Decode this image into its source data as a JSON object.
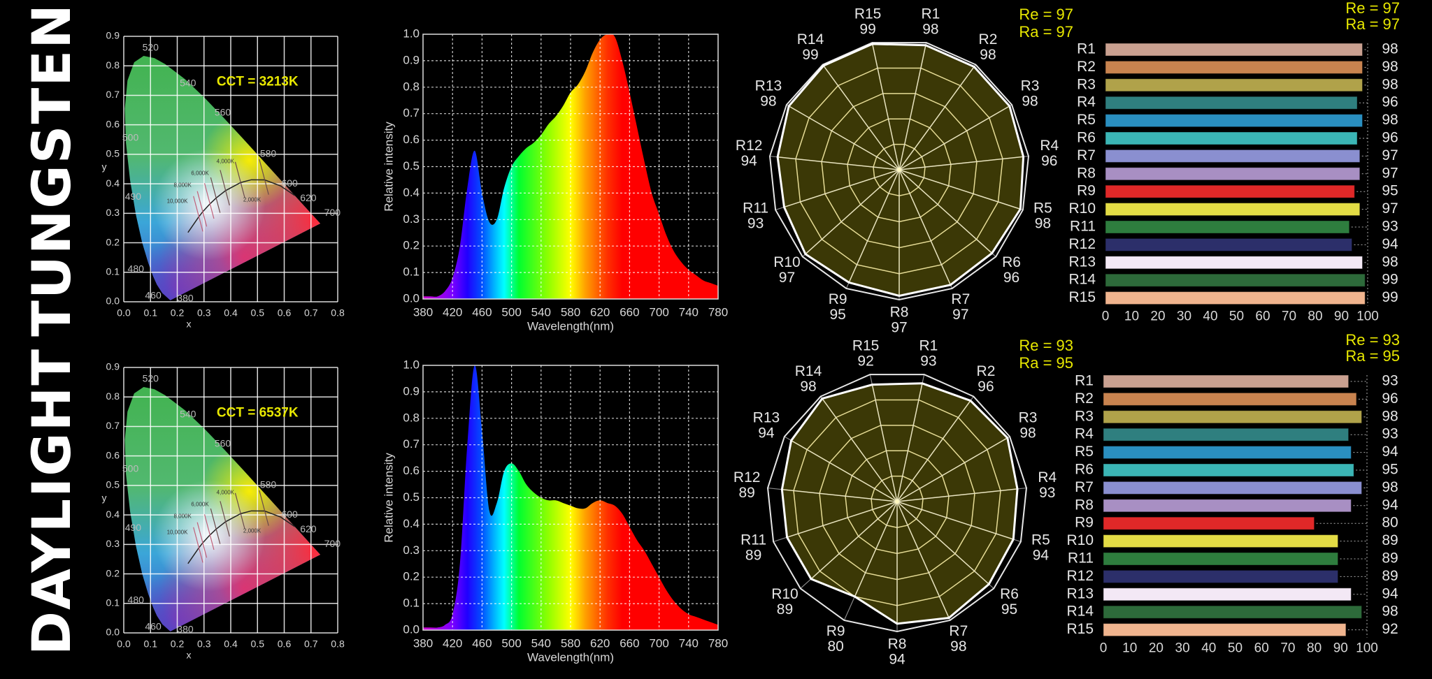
{
  "rows": [
    {
      "label": "TUNGSTEN"
    },
    {
      "label": "DAYLIGHT"
    }
  ],
  "colors": {
    "background": "#000000",
    "annotation": "#e8e800",
    "radar_fill": "#3b3806",
    "radar_grid": "#e6dc96",
    "cri_bar_colors": [
      "#c9a090",
      "#c8834f",
      "#b0a24a",
      "#2f7f7f",
      "#2a8fc0",
      "#3bb5b5",
      "#8a8fd0",
      "#a88fc3",
      "#e02828",
      "#e3dc45",
      "#2e7d3e",
      "#2c2f6a",
      "#f3e8f5",
      "#2d6a3a",
      "#f0b48e"
    ]
  },
  "chart_data": [
    {
      "type": "chromaticity",
      "xlabel": "x",
      "ylabel": "y",
      "xlim": [
        0,
        0.8
      ],
      "ylim": [
        0,
        0.9
      ],
      "xticks": [
        "0.0",
        "0.1",
        "0.2",
        "0.3",
        "0.4",
        "0.5",
        "0.6",
        "0.7",
        "0.8"
      ],
      "yticks": [
        "0.0",
        "0.1",
        "0.2",
        "0.3",
        "0.4",
        "0.5",
        "0.6",
        "0.7",
        "0.8",
        "0.9"
      ],
      "grid": true,
      "annotation": "CCT = 3213K",
      "wavelength_labels": [
        "520",
        "540",
        "560",
        "580",
        "600",
        "620",
        "700",
        "500",
        "490",
        "480",
        "460",
        "380"
      ],
      "isotherm_labels": [
        "10,000K",
        "8,000K",
        "6,000K",
        "4,000K",
        "2,000K"
      ]
    },
    {
      "type": "area",
      "xlabel": "Wavelength(nm)",
      "ylabel": "Relative intensity",
      "xlim": [
        380,
        780
      ],
      "ylim": [
        0,
        1.0
      ],
      "xticks": [
        "380",
        "420",
        "460",
        "500",
        "540",
        "580",
        "620",
        "660",
        "700",
        "740",
        "780"
      ],
      "yticks": [
        "0.0",
        "0.1",
        "0.2",
        "0.3",
        "0.4",
        "0.5",
        "0.6",
        "0.7",
        "0.8",
        "0.9",
        "1.0"
      ],
      "grid": true,
      "x": [
        380,
        390,
        400,
        410,
        420,
        430,
        440,
        450,
        460,
        470,
        480,
        490,
        500,
        510,
        520,
        530,
        540,
        550,
        560,
        570,
        580,
        590,
        600,
        610,
        620,
        630,
        640,
        650,
        660,
        670,
        680,
        690,
        700,
        710,
        720,
        730,
        740,
        750,
        760,
        770,
        780
      ],
      "y": [
        0.01,
        0.01,
        0.01,
        0.03,
        0.08,
        0.2,
        0.42,
        0.56,
        0.4,
        0.29,
        0.3,
        0.42,
        0.5,
        0.54,
        0.57,
        0.59,
        0.62,
        0.66,
        0.69,
        0.73,
        0.78,
        0.81,
        0.86,
        0.93,
        0.98,
        1.0,
        0.99,
        0.9,
        0.78,
        0.65,
        0.52,
        0.4,
        0.32,
        0.24,
        0.18,
        0.14,
        0.11,
        0.09,
        0.07,
        0.06,
        0.05
      ]
    },
    {
      "type": "radar",
      "categories": [
        "R1",
        "R2",
        "R3",
        "R4",
        "R5",
        "R6",
        "R7",
        "R8",
        "R9",
        "R10",
        "R11",
        "R12",
        "R13",
        "R14",
        "R15"
      ],
      "values": [
        98,
        98,
        98,
        96,
        98,
        96,
        97,
        97,
        95,
        97,
        93,
        94,
        98,
        99,
        99
      ],
      "value_labels": [
        "98",
        "98",
        "98",
        "96",
        "98",
        "96",
        "97",
        "97",
        "95",
        "97",
        "93",
        "94",
        "98",
        "99",
        "99"
      ],
      "rlim": [
        0,
        100
      ],
      "annotations": [
        "Re = 97",
        "Ra = 97"
      ]
    },
    {
      "type": "bar",
      "orientation": "horizontal",
      "categories": [
        "R1",
        "R2",
        "R3",
        "R4",
        "R5",
        "R6",
        "R7",
        "R8",
        "R9",
        "R10",
        "R11",
        "R12",
        "R13",
        "R14",
        "R15"
      ],
      "values": [
        98,
        98,
        98,
        96,
        98,
        96,
        97,
        97,
        95,
        97,
        93,
        94,
        98,
        99,
        99
      ],
      "value_labels": [
        "98",
        "98",
        "98",
        "96",
        "98",
        "96",
        "97",
        "97",
        "95",
        "97",
        "93",
        "94",
        "98",
        "99",
        "99"
      ],
      "xlim": [
        0,
        100
      ],
      "xticks": [
        "0",
        "10",
        "20",
        "30",
        "40",
        "50",
        "60",
        "70",
        "80",
        "90",
        "100"
      ],
      "annotations": [
        "Re = 97",
        "Ra = 97"
      ]
    },
    {
      "type": "chromaticity",
      "xlabel": "x",
      "ylabel": "y",
      "xlim": [
        0,
        0.8
      ],
      "ylim": [
        0,
        0.9
      ],
      "xticks": [
        "0.0",
        "0.1",
        "0.2",
        "0.3",
        "0.4",
        "0.5",
        "0.6",
        "0.7",
        "0.8"
      ],
      "yticks": [
        "0.0",
        "0.1",
        "0.2",
        "0.3",
        "0.4",
        "0.5",
        "0.6",
        "0.7",
        "0.8",
        "0.9"
      ],
      "grid": true,
      "annotation": "CCT = 6537K",
      "wavelength_labels": [
        "520",
        "540",
        "560",
        "580",
        "600",
        "620",
        "700",
        "500",
        "490",
        "480",
        "460",
        "380"
      ],
      "isotherm_labels": [
        "10,000K",
        "8,000K",
        "6,000K",
        "4,000K",
        "2,000K"
      ]
    },
    {
      "type": "area",
      "xlabel": "Wavelength(nm)",
      "ylabel": "Relative intensity",
      "xlim": [
        380,
        780
      ],
      "ylim": [
        0,
        1.0
      ],
      "xticks": [
        "380",
        "420",
        "460",
        "500",
        "540",
        "580",
        "620",
        "660",
        "700",
        "740",
        "780"
      ],
      "yticks": [
        "0.0",
        "0.1",
        "0.2",
        "0.3",
        "0.4",
        "0.5",
        "0.6",
        "0.7",
        "0.8",
        "0.9",
        "1.0"
      ],
      "grid": true,
      "x": [
        380,
        390,
        400,
        410,
        420,
        430,
        440,
        450,
        460,
        470,
        480,
        490,
        500,
        510,
        520,
        530,
        540,
        550,
        560,
        570,
        580,
        590,
        600,
        610,
        620,
        630,
        640,
        650,
        660,
        670,
        680,
        690,
        700,
        710,
        720,
        730,
        740,
        750,
        760,
        770,
        780
      ],
      "y": [
        0.01,
        0.01,
        0.01,
        0.02,
        0.06,
        0.25,
        0.7,
        1.0,
        0.75,
        0.45,
        0.48,
        0.6,
        0.63,
        0.6,
        0.55,
        0.52,
        0.5,
        0.49,
        0.49,
        0.48,
        0.47,
        0.46,
        0.46,
        0.48,
        0.49,
        0.48,
        0.47,
        0.44,
        0.39,
        0.34,
        0.3,
        0.25,
        0.2,
        0.15,
        0.11,
        0.08,
        0.06,
        0.05,
        0.04,
        0.03,
        0.02
      ]
    },
    {
      "type": "radar",
      "categories": [
        "R1",
        "R2",
        "R3",
        "R4",
        "R5",
        "R6",
        "R7",
        "R8",
        "R9",
        "R10",
        "R11",
        "R12",
        "R13",
        "R14",
        "R15"
      ],
      "values": [
        93,
        96,
        98,
        93,
        94,
        95,
        98,
        94,
        80,
        89,
        89,
        89,
        94,
        98,
        92
      ],
      "value_labels": [
        "93",
        "96",
        "98",
        "93",
        "94",
        "95",
        "98",
        "94",
        "80",
        "89",
        "89",
        "89",
        "94",
        "98",
        "92"
      ],
      "rlim": [
        0,
        100
      ],
      "annotations": [
        "Re = 93",
        "Ra = 95"
      ]
    },
    {
      "type": "bar",
      "orientation": "horizontal",
      "categories": [
        "R1",
        "R2",
        "R3",
        "R4",
        "R5",
        "R6",
        "R7",
        "R8",
        "R9",
        "R10",
        "R11",
        "R12",
        "R13",
        "R14",
        "R15"
      ],
      "values": [
        93,
        96,
        98,
        93,
        94,
        95,
        98,
        94,
        80,
        89,
        89,
        89,
        94,
        98,
        92
      ],
      "value_labels": [
        "93",
        "96",
        "98",
        "93",
        "94",
        "95",
        "98",
        "94",
        "80",
        "89",
        "89",
        "89",
        "94",
        "98",
        "92"
      ],
      "xlim": [
        0,
        100
      ],
      "xticks": [
        "0",
        "10",
        "20",
        "30",
        "40",
        "50",
        "60",
        "70",
        "80",
        "90",
        "100"
      ],
      "annotations": [
        "Re = 93",
        "Ra = 95"
      ]
    }
  ]
}
